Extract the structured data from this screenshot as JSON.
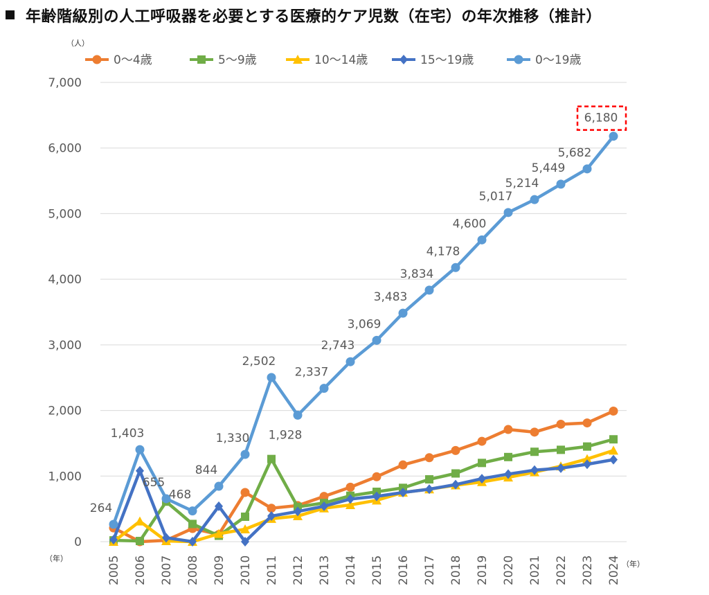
{
  "chart_data": {
    "type": "line",
    "title": "年齢階級別の人工呼吸器を必要とする医療的ケア児数（在宅）の年次推移（推計）",
    "title_marker": "■",
    "ylabel": "（人）",
    "xlabel": "（年）",
    "xlabel_left": "（年）",
    "ylim": [
      0,
      7000
    ],
    "yticks": [
      0,
      1000,
      2000,
      3000,
      4000,
      5000,
      6000,
      7000
    ],
    "ytick_labels": [
      "0",
      "1,000",
      "2,000",
      "3,000",
      "4,000",
      "5,000",
      "6,000",
      "7,000"
    ],
    "grid": true,
    "legend_position": "top",
    "categories": [
      "2005",
      "2006",
      "2007",
      "2008",
      "2009",
      "2010",
      "2011",
      "2012",
      "2013",
      "2014",
      "2015",
      "2016",
      "2017",
      "2018",
      "2019",
      "2020",
      "2021",
      "2022",
      "2023",
      "2024"
    ],
    "series": [
      {
        "name": "0～4歳",
        "color": "#ED7D31",
        "marker": "circle",
        "values": [
          210,
          0,
          20,
          200,
          110,
          750,
          510,
          550,
          690,
          830,
          990,
          1170,
          1280,
          1390,
          1530,
          1710,
          1670,
          1790,
          1810,
          1990
        ]
      },
      {
        "name": "5～9歳",
        "color": "#70AD47",
        "marker": "square",
        "values": [
          20,
          10,
          610,
          270,
          90,
          380,
          1260,
          530,
          590,
          700,
          760,
          820,
          950,
          1040,
          1200,
          1290,
          1370,
          1400,
          1450,
          1560
        ]
      },
      {
        "name": "10～14歳",
        "color": "#FFC000",
        "marker": "triangle",
        "values": [
          0,
          310,
          10,
          0,
          120,
          190,
          350,
          390,
          510,
          560,
          630,
          750,
          800,
          860,
          910,
          980,
          1060,
          1150,
          1260,
          1390
        ]
      },
      {
        "name": "15～19歳",
        "color": "#4472C4",
        "marker": "diamond",
        "values": [
          30,
          1080,
          60,
          0,
          540,
          0,
          390,
          460,
          540,
          650,
          690,
          750,
          800,
          870,
          960,
          1030,
          1090,
          1120,
          1180,
          1250
        ]
      },
      {
        "name": "0～19歳",
        "color": "#5B9BD5",
        "marker": "circle",
        "values": [
          264,
          1403,
          655,
          468,
          844,
          1330,
          2502,
          1928,
          2337,
          2743,
          3069,
          3483,
          3834,
          4178,
          4600,
          5017,
          5214,
          5449,
          5682,
          6180
        ]
      }
    ],
    "data_labels": [
      "264",
      "1,403",
      "655",
      "468",
      "844",
      "1,330",
      "2,502",
      "1,928",
      "2,337",
      "2,743",
      "3,069",
      "3,483",
      "3,834",
      "4,178",
      "4,600",
      "5,017",
      "5,214",
      "5,449",
      "5,682",
      "6,180"
    ],
    "highlight": {
      "label": "6,180",
      "color": "#FF0000"
    }
  }
}
